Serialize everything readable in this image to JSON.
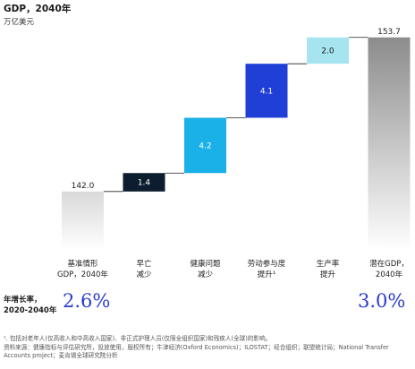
{
  "chart_data": {
    "type": "bar",
    "title": "GDP，2040年",
    "subtitle": "万亿美元",
    "categories": [
      "基准情形\nGDP，2040年",
      "早亡\n减少",
      "健康问题\n减少",
      "劳动参与度\n提升¹",
      "生产率\n提升",
      "潜在GDP，\n2040年"
    ],
    "values": [
      142.0,
      1.4,
      4.2,
      4.1,
      2.0,
      153.7
    ],
    "value_labels": [
      "142.0",
      "1.4",
      "4.2",
      "4.1",
      "2.0",
      "153.7"
    ],
    "bar_kinds": [
      "total",
      "increment",
      "increment",
      "increment",
      "increment",
      "total"
    ],
    "colors": [
      "#d9d9d9",
      "#0b1d2e",
      "#1ab0e8",
      "#1f3fd6",
      "#a6e4ef",
      "#8c8c8c"
    ],
    "ylim": [
      137.5,
      154.5
    ]
  },
  "growth": {
    "label": "年增长率，\n2020-2040年",
    "left_value": "2.6%",
    "right_value": "3.0%"
  },
  "footnote": "¹. 包括对老年人(仅高收入和中高收入国家)、非正式护理人员(仅限全组织国家)和残疾人(全球)的影响。\n资料来源：健康指标与评估研究所，投放使用，版权所有；牛津经济(Oxford Economics)；ILOSTAT；经合组织；联盟统计局；National Transfer Accounts project；麦肯锡全球研究院分析"
}
